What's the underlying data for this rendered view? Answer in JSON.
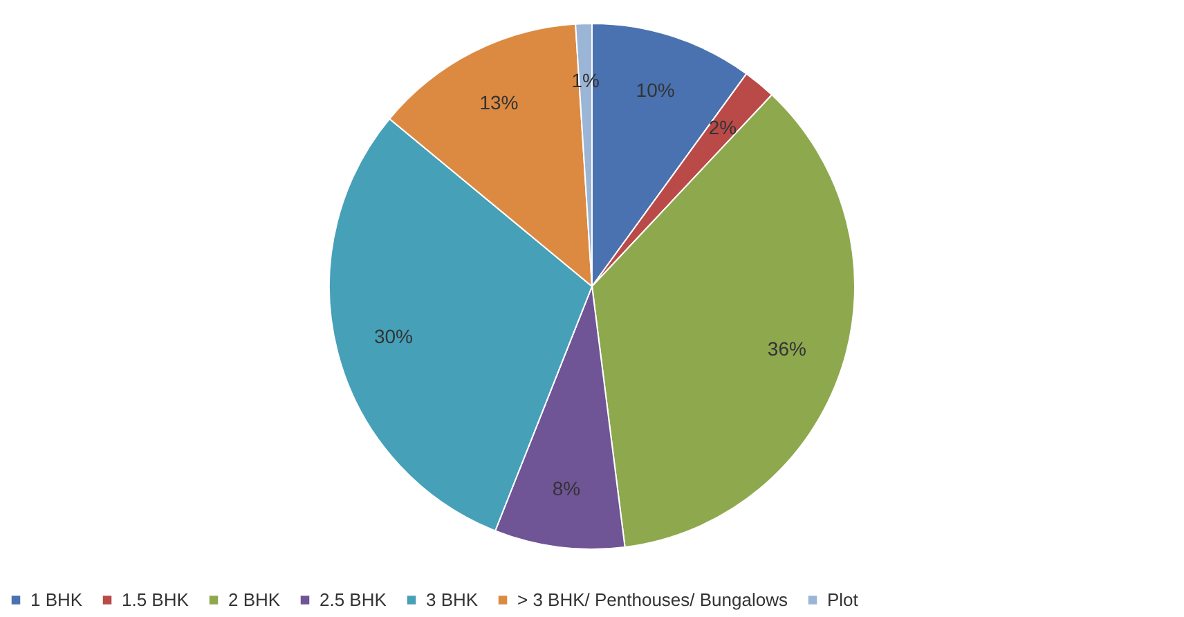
{
  "chart_data": {
    "type": "pie",
    "categories": [
      "1 BHK",
      "1.5 BHK",
      "2 BHK",
      "2.5 BHK",
      "3 BHK",
      "> 3 BHK/ Penthouses/ Bungalows",
      "Plot"
    ],
    "values": [
      10,
      2,
      36,
      8,
      30,
      13,
      1
    ],
    "value_labels": [
      "10%",
      "2%",
      "36%",
      "8%",
      "30%",
      "13%",
      "1%"
    ],
    "colors": [
      "#4a72b0",
      "#b94a48",
      "#8ea84e",
      "#6f5496",
      "#46a0b8",
      "#dc8a42",
      "#9bb5d6"
    ],
    "legend": "bottom"
  }
}
